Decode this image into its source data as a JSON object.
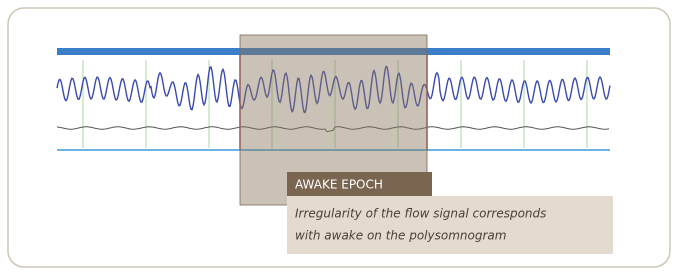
{
  "callout": {
    "title": "AWAKE EPOCH",
    "lines": [
      "Irregularity of the flow signal corresponds",
      "with awake on the polysomnogram"
    ]
  }
}
